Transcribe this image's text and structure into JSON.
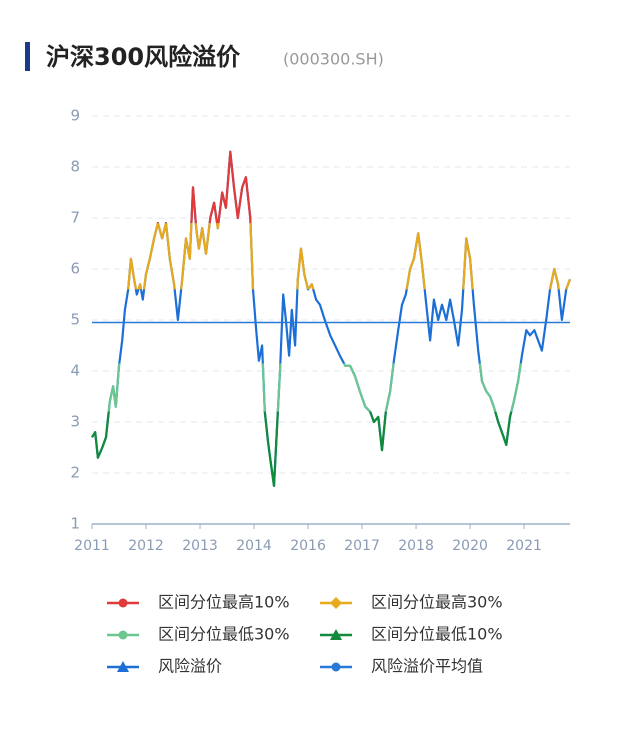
{
  "chart_data": {
    "type": "line",
    "title": "沪深300风险溢价",
    "subtitle": "(000300.SH)",
    "x": [
      0,
      0.06,
      0.11,
      0.19,
      0.26,
      0.33,
      0.39,
      0.44,
      0.5,
      0.56,
      0.61,
      0.67,
      0.72,
      0.78,
      0.83,
      0.89,
      0.94,
      1,
      1.07,
      1.15,
      1.22,
      1.3,
      1.37,
      1.44,
      1.52,
      1.59,
      1.67,
      1.74,
      1.81,
      1.87,
      1.93,
      1.98,
      2.04,
      2.11,
      2.19,
      2.26,
      2.33,
      2.41,
      2.48,
      2.56,
      2.63,
      2.7,
      2.78,
      2.85,
      2.93,
      2.98,
      3.04,
      3.09,
      3.15,
      3.2,
      3.26,
      3.31,
      3.37,
      3.43,
      3.48,
      3.54,
      3.59,
      3.65,
      3.7,
      3.76,
      3.81,
      3.87,
      3.93,
      4,
      4.07,
      4.15,
      4.22,
      4.31,
      4.41,
      4.5,
      4.59,
      4.69,
      4.78,
      4.87,
      4.96,
      5.06,
      5.15,
      5.22,
      5.3,
      5.37,
      5.44,
      5.52,
      5.59,
      5.67,
      5.74,
      5.81,
      5.89,
      5.96,
      6.04,
      6.11,
      6.19,
      6.26,
      6.33,
      6.41,
      6.48,
      6.56,
      6.63,
      6.7,
      6.78,
      6.85,
      6.93,
      7,
      7.07,
      7.15,
      7.22,
      7.3,
      7.37,
      7.44,
      7.52,
      7.59,
      7.67,
      7.74,
      7.81,
      7.89,
      7.96,
      8.04,
      8.11,
      8.19,
      8.26,
      8.33,
      8.41,
      8.48,
      8.56,
      8.63,
      8.7,
      8.78,
      8.85
    ],
    "series": [
      {
        "name": "风险溢价",
        "color": "#1c6fd6",
        "marker": "triangle",
        "values": [
          2.7,
          2.8,
          2.3,
          2.5,
          2.7,
          3.4,
          3.7,
          3.3,
          4.1,
          4.6,
          5.2,
          5.6,
          6.2,
          5.8,
          5.5,
          5.7,
          5.4,
          5.9,
          6.2,
          6.6,
          6.9,
          6.6,
          6.9,
          6.2,
          5.7,
          5.0,
          5.8,
          6.6,
          6.2,
          7.6,
          6.8,
          6.4,
          6.8,
          6.3,
          7.0,
          7.3,
          6.8,
          7.5,
          7.2,
          8.3,
          7.6,
          7.0,
          7.6,
          7.8,
          7.0,
          5.6,
          4.8,
          4.2,
          4.5,
          3.2,
          2.6,
          2.2,
          1.75,
          3.0,
          4.0,
          5.5,
          5.0,
          4.3,
          5.2,
          4.5,
          5.8,
          6.4,
          5.9,
          5.6,
          5.7,
          5.4,
          5.3,
          5.0,
          4.7,
          4.5,
          4.3,
          4.1,
          4.1,
          3.9,
          3.6,
          3.3,
          3.2,
          3.0,
          3.1,
          2.45,
          3.2,
          3.6,
          4.2,
          4.8,
          5.3,
          5.5,
          6.0,
          6.2,
          6.7,
          6.1,
          5.3,
          4.6,
          5.4,
          5.0,
          5.3,
          5.0,
          5.4,
          5.0,
          4.5,
          5.2,
          6.6,
          6.2,
          5.3,
          4.4,
          3.8,
          3.6,
          3.5,
          3.3,
          3.0,
          2.8,
          2.55,
          3.1,
          3.4,
          3.8,
          4.3,
          4.8,
          4.7,
          4.8,
          4.6,
          4.4,
          5.0,
          5.6,
          6.0,
          5.7,
          5.0,
          5.6,
          5.8
        ]
      }
    ],
    "bands": [
      {
        "name": "区间分位最高10%",
        "color": "#e03a3a",
        "marker": "circle",
        "min": 6.9
      },
      {
        "name": "区间分位最高30%",
        "color": "#e9a91c",
        "marker": "diamond",
        "min": 5.6,
        "max": 6.9
      },
      {
        "name": "区间分位最低30%",
        "color": "#6cc68f",
        "marker": "circle",
        "min": 3.2,
        "max": 4.15
      },
      {
        "name": "区间分位最低10%",
        "color": "#128a3c",
        "marker": "triangle",
        "max": 3.2
      }
    ],
    "mean": {
      "name": "风险溢价平均值",
      "value": 4.95,
      "color": "#2979d8",
      "marker": "circle"
    },
    "xlim": [
      0,
      8.85
    ],
    "xticks": [
      {
        "value": 0,
        "label": "2011"
      },
      {
        "value": 1,
        "label": "2012"
      },
      {
        "value": 2,
        "label": "2013"
      },
      {
        "value": 3,
        "label": "2014"
      },
      {
        "value": 4,
        "label": "2016"
      },
      {
        "value": 5,
        "label": "2017"
      },
      {
        "value": 6,
        "label": "2018"
      },
      {
        "value": 7,
        "label": "2020"
      },
      {
        "value": 8,
        "label": "2021"
      }
    ],
    "ylim": [
      1,
      9
    ],
    "yticks": [
      1,
      2,
      3,
      4,
      5,
      6,
      7,
      8,
      9
    ],
    "grid": true
  }
}
